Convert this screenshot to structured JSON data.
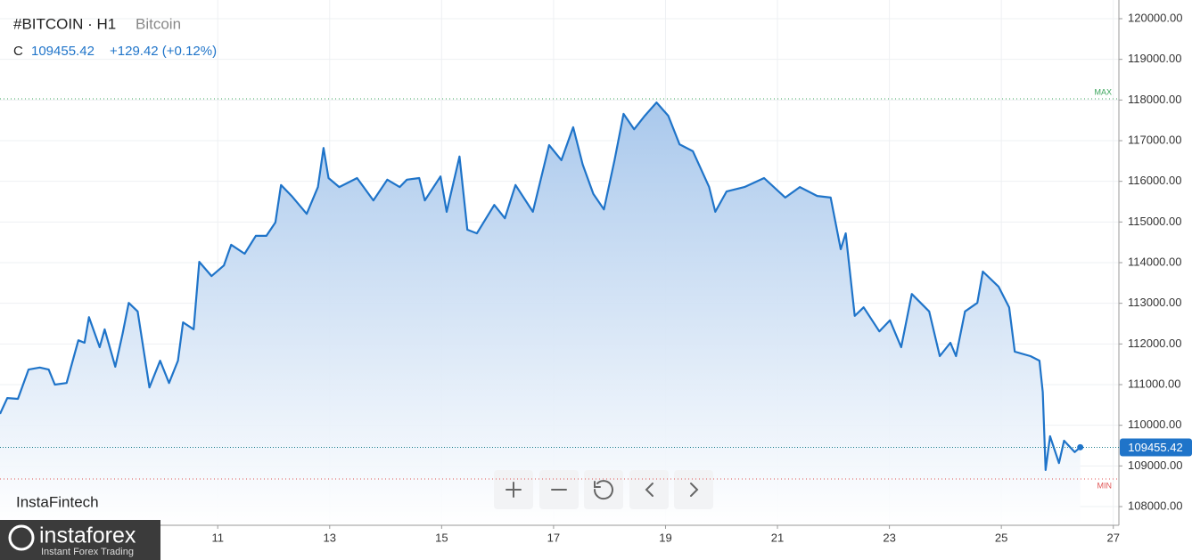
{
  "chart_data": {
    "type": "area",
    "title": "#BITCOIN · H1",
    "subtitle": "Bitcoin",
    "close_label": "C",
    "last_price": 109455.42,
    "change": "+129.42 (+0.12%)",
    "color": "#1f74c9",
    "x": [
      7.11,
      7.24,
      7.43,
      7.62,
      7.82,
      7.98,
      8.09,
      8.3,
      8.51,
      8.62,
      8.7,
      8.89,
      8.98,
      9.17,
      9.3,
      9.41,
      9.57,
      9.78,
      9.97,
      10.13,
      10.29,
      10.38,
      10.57,
      10.67,
      10.89,
      11.11,
      11.24,
      11.48,
      11.68,
      11.87,
      12.03,
      12.13,
      12.32,
      12.59,
      12.79,
      12.89,
      12.98,
      13.17,
      13.49,
      13.78,
      14.03,
      14.25,
      14.38,
      14.6,
      14.7,
      14.98,
      15.09,
      15.32,
      15.46,
      15.63,
      15.94,
      16.13,
      16.32,
      16.63,
      16.92,
      17.14,
      17.35,
      17.52,
      17.71,
      17.9,
      18.09,
      18.25,
      18.44,
      18.63,
      18.84,
      19.05,
      19.25,
      19.49,
      19.78,
      19.89,
      20.09,
      20.41,
      20.76,
      21.14,
      21.4,
      21.71,
      21.95,
      22.13,
      22.22,
      22.38,
      22.54,
      22.82,
      23.01,
      23.21,
      23.4,
      23.71,
      23.9,
      24.09,
      24.19,
      24.35,
      24.57,
      24.67,
      24.95,
      25.14,
      25.24,
      25.52,
      25.68,
      25.74,
      25.79,
      25.87,
      26.03,
      26.12,
      26.31,
      26.41
    ],
    "values": [
      110280,
      110670,
      110650,
      111370,
      111420,
      111370,
      111000,
      111040,
      112090,
      112030,
      112660,
      111920,
      112360,
      111440,
      112250,
      113010,
      112800,
      110930,
      111590,
      111040,
      111590,
      112530,
      112360,
      114020,
      113670,
      113930,
      114440,
      114220,
      114660,
      114660,
      114990,
      115910,
      115640,
      115200,
      115860,
      116820,
      116080,
      115860,
      116080,
      115530,
      116040,
      115860,
      116040,
      116080,
      115530,
      116120,
      115250,
      116610,
      114810,
      114720,
      115420,
      115090,
      115910,
      115250,
      116890,
      116520,
      117330,
      116410,
      115690,
      115310,
      116520,
      117660,
      117280,
      117610,
      117940,
      117610,
      116910,
      116740,
      115860,
      115250,
      115750,
      115860,
      116080,
      115600,
      115860,
      115640,
      115600,
      114330,
      114720,
      112690,
      112900,
      112310,
      112580,
      111920,
      113230,
      112800,
      111700,
      112030,
      111700,
      112800,
      113010,
      113780,
      113410,
      112900,
      111810,
      111700,
      111590,
      110820,
      108900,
      109730,
      109070,
      109620,
      109340,
      109460
    ],
    "xlim": [
      7.11,
      27.1
    ],
    "xticks": [
      11,
      13,
      15,
      17,
      19,
      21,
      23,
      25,
      27
    ],
    "ylim": [
      107540,
      120460
    ],
    "yticks": [
      {
        "value": 108000,
        "label": "108000.00"
      },
      {
        "value": 109000,
        "label": "109000.00"
      },
      {
        "value": 110000,
        "label": "110000.00"
      },
      {
        "value": 111000,
        "label": "111000.00"
      },
      {
        "value": 112000,
        "label": "112000.00"
      },
      {
        "value": 113000,
        "label": "113000.00"
      },
      {
        "value": 114000,
        "label": "114000.00"
      },
      {
        "value": 115000,
        "label": "115000.00"
      },
      {
        "value": 116000,
        "label": "116000.00"
      },
      {
        "value": 117000,
        "label": "117000.00"
      },
      {
        "value": 118000,
        "label": "118000.00"
      },
      {
        "value": 119000,
        "label": "119000.00"
      },
      {
        "value": 120000,
        "label": "120000.00"
      }
    ],
    "grid": true,
    "max_line": {
      "label": "MAX",
      "value": 118030,
      "color": "#3aa55b"
    },
    "min_line": {
      "label": "MIN",
      "value": 108680,
      "color": "#e05454"
    }
  },
  "branding": {
    "watermark": "InstaFintech",
    "logo": "instaforex",
    "tagline": "Instant Forex Trading"
  }
}
